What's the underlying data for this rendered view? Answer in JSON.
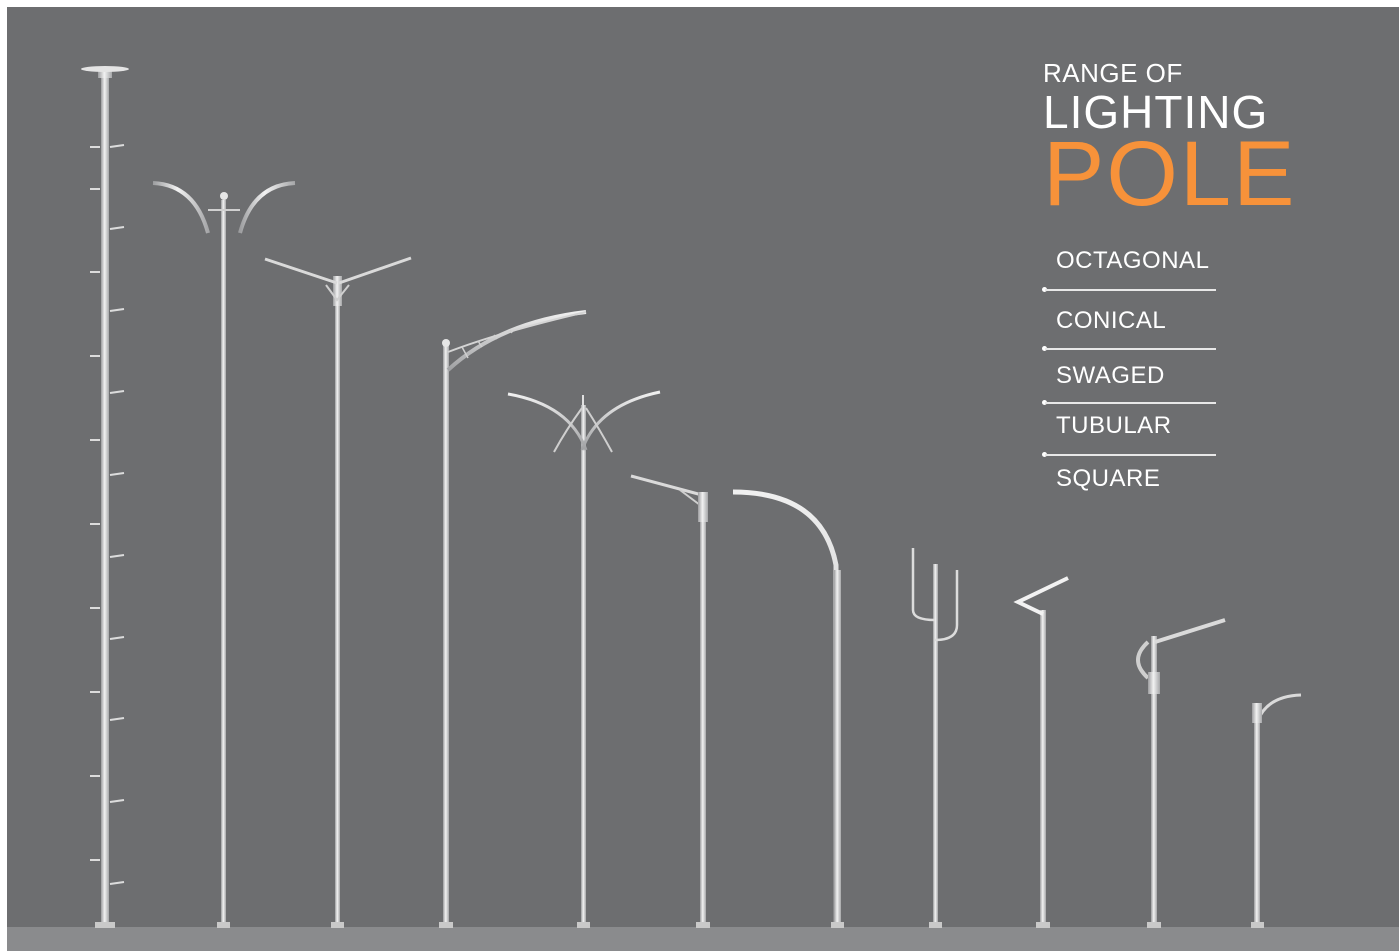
{
  "colors": {
    "background": "#6d6e70",
    "ground": "#8a8b8d",
    "pole_metal": "#d9dadb",
    "accent": "#f7923a",
    "text": "#ffffff"
  },
  "title": {
    "line1": "RANGE OF",
    "line2": "LIGHTING",
    "line3": "POLE"
  },
  "pole_types": [
    "OCTAGONAL",
    "CONICAL",
    "SWAGED",
    "TUBULAR",
    "SQUARE"
  ],
  "poles": [
    {
      "name": "high-mast-pole"
    },
    {
      "name": "double-curved-arm-pole"
    },
    {
      "name": "double-y-arm-pole"
    },
    {
      "name": "single-arch-arm-pole"
    },
    {
      "name": "crossed-arm-pole"
    },
    {
      "name": "single-short-arm-pole"
    },
    {
      "name": "swan-neck-pole"
    },
    {
      "name": "u-bracket-pole"
    },
    {
      "name": "zigzag-arm-pole"
    },
    {
      "name": "side-mount-arm-pole"
    },
    {
      "name": "small-curved-arm-pole"
    }
  ]
}
